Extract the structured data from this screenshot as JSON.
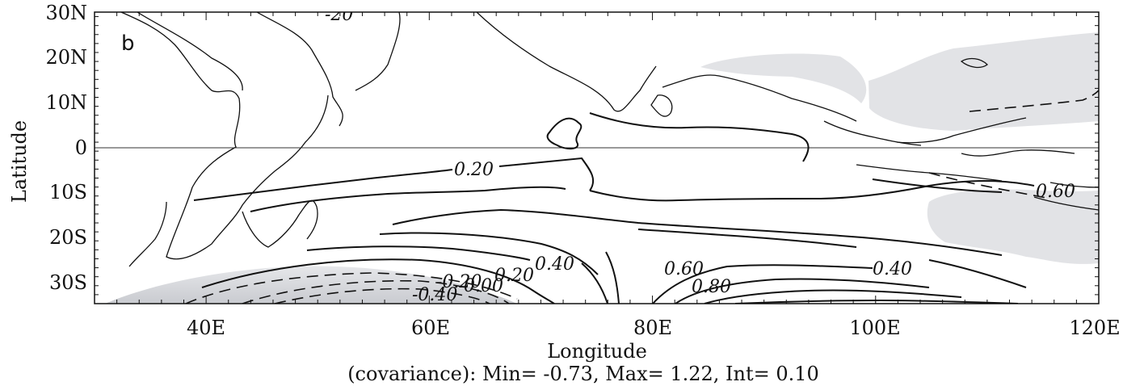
{
  "panel": {
    "letter": "b"
  },
  "axes": {
    "xlabel": "Longitude",
    "ylabel": "Latitude",
    "x_ticks": [
      "40E",
      "60E",
      "80E",
      "100E",
      "120E"
    ],
    "y_ticks": [
      "30N",
      "20N",
      "10N",
      "0",
      "10S",
      "20S",
      "30S"
    ]
  },
  "caption": "(covariance): Min= -0.73, Max= 1.22, Int= 0.10",
  "chart_data": {
    "type": "contour-map",
    "field": "covariance",
    "min": -0.73,
    "max": 1.22,
    "interval": 0.1,
    "lon_range": [
      30,
      120
    ],
    "lat_range": [
      -35,
      30
    ],
    "equator_line": true,
    "positive_contours": "solid",
    "negative_contours": "dashed",
    "shading": "light grey where value is negative",
    "contour_labels": [
      "0.20",
      "0.40",
      "0.60",
      "0.80",
      "0.40",
      "0.20",
      "0.00",
      "-0.20",
      "-0.40",
      "0.60"
    ],
    "clipped_label_top": "-20"
  },
  "colors": {
    "shading": "#e2e3e6",
    "shading_dark": "#cfd1d5",
    "line": "#111111"
  }
}
